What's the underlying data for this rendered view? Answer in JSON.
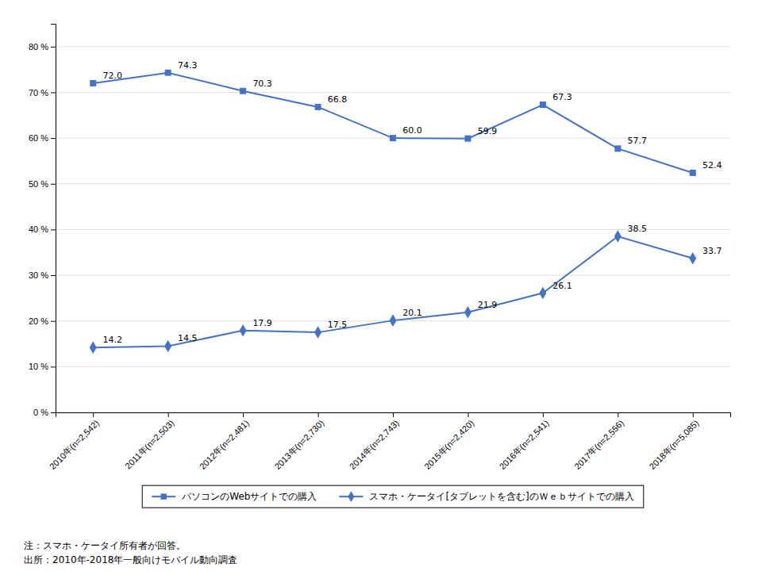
{
  "chart_data": {
    "type": "line",
    "categories": [
      "2010年(n=2,542)",
      "2011年(n=2,503)",
      "2012年(n=2,481)",
      "2013年(n=2,730)",
      "2014年(n=2,743)",
      "2015年(n=2,420)",
      "2016年(n=2,541)",
      "2017年(n=2,556)",
      "2018年(n=5,085)"
    ],
    "series": [
      {
        "name": "パソコンのWebサイトでの購入",
        "color": "#4472C4",
        "marker": "square",
        "values": [
          72.0,
          74.3,
          70.3,
          66.8,
          60.0,
          59.9,
          67.3,
          57.7,
          52.4
        ],
        "value_labels": [
          "72.0",
          "74.3",
          "70.3",
          "66.8",
          "60.0",
          "59.9",
          "67.3",
          "57.7",
          "52.4"
        ]
      },
      {
        "name": "スマホ・ケータイ[タブレットを含む]のＷｅｂサイトでの購入",
        "color": "#4472C4",
        "marker": "diamond",
        "values": [
          14.2,
          14.5,
          17.9,
          17.5,
          20.1,
          21.9,
          26.1,
          38.5,
          33.7
        ],
        "value_labels": [
          "14.2",
          "14.5",
          "17.9",
          "17.5",
          "20.1",
          "21.9",
          "26.1",
          "38.5",
          "33.7"
        ]
      }
    ],
    "ylim": [
      0,
      85
    ],
    "yticks": [
      {
        "value": 0,
        "label": "0 %"
      },
      {
        "value": 10,
        "label": "10 %"
      },
      {
        "value": 20,
        "label": "20 %"
      },
      {
        "value": 30,
        "label": "30 %"
      },
      {
        "value": 40,
        "label": "40 %"
      },
      {
        "value": 50,
        "label": "50 %"
      },
      {
        "value": 60,
        "label": "60 %"
      },
      {
        "value": 70,
        "label": "70 %"
      },
      {
        "value": 80,
        "label": "80 %"
      }
    ],
    "grid": true,
    "data_labels": true,
    "legend": "bottom",
    "annotations": [
      "注：スマホ・ケータイ所有者が回答。",
      "出所：2010年-2018年一般向けモバイル動向調査"
    ]
  }
}
